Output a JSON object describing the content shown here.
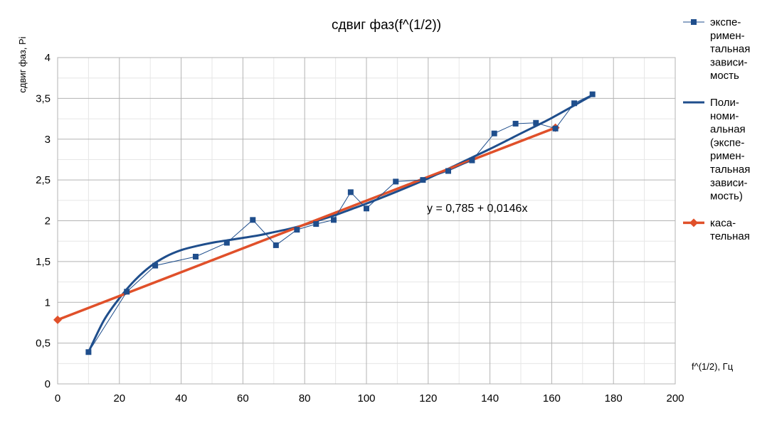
{
  "chart_data": {
    "type": "line",
    "title": "сдвиг фаз(f^(1/2))",
    "xlabel": "f^(1/2), Гц",
    "ylabel": "сдвиг фаз, Pi",
    "xlim": [
      0,
      200
    ],
    "ylim": [
      0,
      4
    ],
    "x_ticks": [
      "0",
      "20",
      "40",
      "60",
      "80",
      "100",
      "120",
      "140",
      "160",
      "180",
      "200"
    ],
    "y_ticks": [
      "0",
      "0,5",
      "1",
      "1,5",
      "2",
      "2,5",
      "3",
      "3,5",
      "4"
    ],
    "grid": true,
    "legend_position": "right",
    "annotation": "y = 0,785 + 0,0146x",
    "series": [
      {
        "name": "экспе-\nримен-\nтальная\nзависи-\nмость",
        "style": "line-markers",
        "marker": "square",
        "color": "#1f4e8c",
        "x": [
          10,
          22.4,
          31.6,
          44.7,
          54.8,
          63.2,
          70.7,
          77.5,
          83.7,
          89.4,
          94.9,
          100,
          109.5,
          118.3,
          126.5,
          134.2,
          141.4,
          148.3,
          154.9,
          161.2,
          167.3,
          173.2
        ],
        "y": [
          0.39,
          1.13,
          1.45,
          1.56,
          1.73,
          2.01,
          1.7,
          1.89,
          1.96,
          2.01,
          2.35,
          2.15,
          2.48,
          2.5,
          2.61,
          2.74,
          3.07,
          3.19,
          3.2,
          3.13,
          3.44,
          3.55
        ]
      },
      {
        "name": "Поли-\nноми-\nальная\n(экспе-\nримен-\nтальная\nзависи-\nмость)",
        "style": "smooth-line",
        "color": "#1f4e8c",
        "x": [
          10,
          15,
          20,
          25,
          30,
          35,
          40,
          45,
          50,
          55,
          60,
          65,
          70,
          75,
          80,
          85,
          90,
          95,
          100,
          110,
          120,
          130,
          140,
          150,
          160,
          173.2
        ],
        "y": [
          0.39,
          0.78,
          1.05,
          1.27,
          1.44,
          1.56,
          1.64,
          1.69,
          1.73,
          1.76,
          1.79,
          1.82,
          1.86,
          1.9,
          1.95,
          2.01,
          2.07,
          2.14,
          2.21,
          2.36,
          2.52,
          2.7,
          2.88,
          3.07,
          3.26,
          3.54
        ]
      },
      {
        "name": "каса-\nтельная",
        "style": "line-markers",
        "marker": "diamond",
        "color": "#e0502a",
        "x": [
          0,
          161.2
        ],
        "y": [
          0.785,
          3.14
        ]
      }
    ]
  }
}
